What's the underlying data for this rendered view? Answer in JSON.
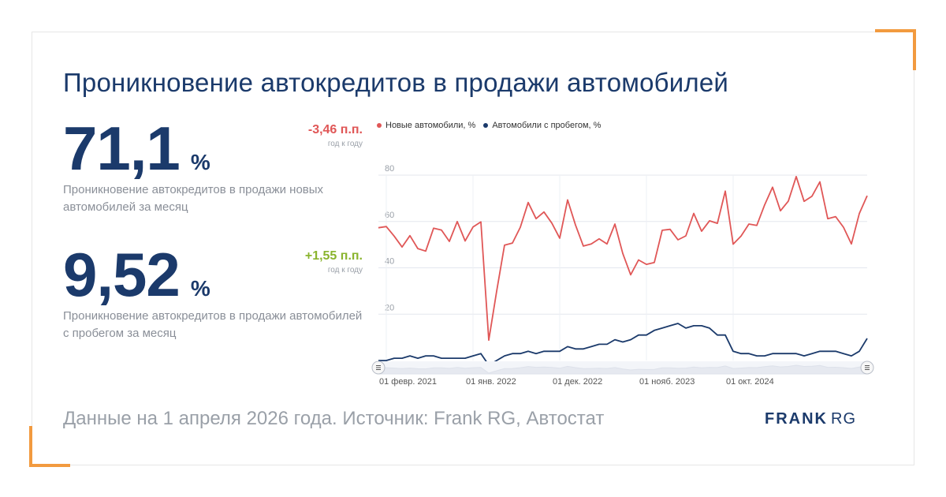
{
  "title": "Проникновение автокредитов в продажи автомобилей",
  "kpis": [
    {
      "value": "71,1",
      "unit": "%",
      "description": "Проникновение автокредитов в продажи новых автомобилей за месяц",
      "delta": "-3,46 п.п.",
      "delta_period": "год к году"
    },
    {
      "value": "9,52",
      "unit": "%",
      "description": "Проникновение автокредитов в продажи автомобилей с пробегом за месяц",
      "delta": "+1,55 п.п.",
      "delta_period": "год к году"
    }
  ],
  "footer": "Данные на 1 апреля 2026 года. Источник: Frank RG, Автостат",
  "logo": {
    "bold": "FRANK",
    "light": "RG"
  },
  "colors": {
    "accent": "#f29a3f",
    "brand": "#1b3a6b",
    "new_series": "#e05757",
    "used_series": "#1b3a6b",
    "negative": "#e05757",
    "positive": "#8ab42e"
  },
  "chart_data": {
    "type": "line",
    "series": [
      {
        "name": "Новые автомобили, %",
        "color": "#e05757",
        "values": [
          57.3,
          57.8,
          53.7,
          49,
          53.9,
          48.3,
          47.2,
          57.1,
          56.3,
          51.4,
          60,
          51.6,
          57.6,
          59.8,
          8.8,
          29.9,
          49.8,
          50.7,
          57.5,
          68.2,
          61.2,
          64.1,
          59.3,
          52.8,
          69.3,
          58.5,
          49.4,
          50.3,
          52.5,
          50.3,
          58.9,
          46.2,
          37,
          43.4,
          41.5,
          42.3,
          56.2,
          56.6,
          52.1,
          53.8,
          63.5,
          55.8,
          60.3,
          59.2,
          73.1,
          50.2,
          53.7,
          58.9,
          58.3,
          67.2,
          74.8,
          64.6,
          68.8,
          79.4,
          68.7,
          70.9,
          77.1,
          61.2,
          62.1,
          57.5,
          50.3,
          63.4,
          71.1
        ]
      },
      {
        "name": "Автомобили с пробегом, %",
        "color": "#1b3a6b",
        "values": [
          0,
          0,
          1,
          1,
          2,
          1,
          2,
          2,
          1,
          1,
          1,
          1,
          2,
          3,
          -2,
          0,
          2,
          3,
          3,
          4,
          3,
          4,
          4,
          4,
          6,
          5,
          5,
          6,
          7,
          7,
          9,
          8,
          9,
          11,
          11,
          13,
          14,
          15,
          16,
          14,
          15,
          15,
          14,
          11,
          11,
          4,
          3,
          3,
          2,
          2,
          3,
          3,
          3,
          3,
          2,
          3,
          4,
          4,
          4,
          3,
          2,
          4,
          9.52
        ]
      }
    ],
    "x_tick_labels": [
      "01 февр. 2021",
      "01 янв. 2022",
      "01 дек. 2022",
      "01 нояб. 2023",
      "01 окт. 2024"
    ],
    "x_tick_indices": [
      1,
      12,
      23,
      34,
      45
    ],
    "y_tick_labels": [
      "20",
      "40",
      "60",
      "80"
    ],
    "ylim": [
      0,
      80
    ],
    "grid": true,
    "legend": "top-left",
    "navigator": true
  }
}
